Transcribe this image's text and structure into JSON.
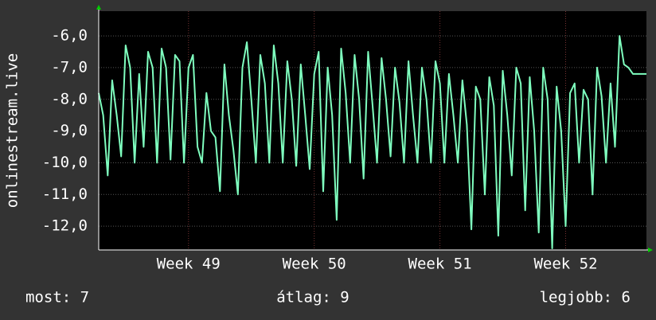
{
  "chart_data": {
    "type": "line",
    "ylabel": "onlinestream.live",
    "xlim": [
      0,
      30.5
    ],
    "ylim": [
      -12.75,
      -5.22
    ],
    "xticks": [
      {
        "value": 5,
        "label": "Week 49"
      },
      {
        "value": 12,
        "label": "Week 50"
      },
      {
        "value": 19,
        "label": "Week 51"
      },
      {
        "value": 26,
        "label": "Week 52"
      }
    ],
    "yticks": [
      {
        "value": -12,
        "label": "-12,0"
      },
      {
        "value": -11,
        "label": "-11,0"
      },
      {
        "value": -10,
        "label": "-10,0"
      },
      {
        "value": -9,
        "label": "-9,0"
      },
      {
        "value": -8,
        "label": "-8,0"
      },
      {
        "value": -7,
        "label": "-7,0"
      },
      {
        "value": -6,
        "label": "-6,0"
      }
    ],
    "grid": true,
    "x": [
      0,
      0.25,
      0.5,
      0.75,
      1,
      1.25,
      1.5,
      1.75,
      2,
      2.25,
      2.5,
      2.75,
      3,
      3.25,
      3.5,
      3.75,
      4,
      4.25,
      4.5,
      4.75,
      5,
      5.25,
      5.5,
      5.75,
      6,
      6.25,
      6.5,
      6.75,
      7,
      7.25,
      7.5,
      7.75,
      8,
      8.25,
      8.5,
      8.75,
      9,
      9.25,
      9.5,
      9.75,
      10,
      10.25,
      10.5,
      10.75,
      11,
      11.25,
      11.5,
      11.75,
      12,
      12.25,
      12.5,
      12.75,
      13,
      13.25,
      13.5,
      13.75,
      14,
      14.25,
      14.5,
      14.75,
      15,
      15.25,
      15.5,
      15.75,
      16,
      16.25,
      16.5,
      16.75,
      17,
      17.25,
      17.5,
      17.75,
      18,
      18.25,
      18.5,
      18.75,
      19,
      19.25,
      19.5,
      19.75,
      20,
      20.25,
      20.5,
      20.75,
      21,
      21.25,
      21.5,
      21.75,
      22,
      22.25,
      22.5,
      22.75,
      23,
      23.25,
      23.5,
      23.75,
      24,
      24.25,
      24.5,
      24.75,
      25,
      25.25,
      25.5,
      25.75,
      26,
      26.25,
      26.5,
      26.75,
      27,
      27.25,
      27.5,
      27.75,
      28,
      28.25,
      28.5,
      28.75,
      29,
      29.25,
      29.5,
      29.75,
      30,
      30.25,
      30.5
    ],
    "series": [
      {
        "name": "onlinestream.live",
        "color": "#7fffbf",
        "values": [
          -7.8,
          -8.5,
          -10.4,
          -7.4,
          -8.5,
          -9.8,
          -6.3,
          -7.0,
          -10.0,
          -7.2,
          -9.5,
          -6.5,
          -7.0,
          -10.0,
          -6.4,
          -7.0,
          -9.9,
          -6.6,
          -6.8,
          -10.0,
          -7.0,
          -6.6,
          -9.5,
          -10.0,
          -7.8,
          -9.0,
          -9.2,
          -10.9,
          -6.9,
          -8.5,
          -9.6,
          -11.0,
          -7.0,
          -6.2,
          -8.0,
          -10.0,
          -6.6,
          -7.5,
          -10.0,
          -6.3,
          -7.5,
          -10.0,
          -6.8,
          -8.0,
          -10.1,
          -6.9,
          -8.5,
          -10.2,
          -7.2,
          -6.5,
          -10.9,
          -7.0,
          -8.5,
          -11.8,
          -6.4,
          -7.8,
          -10.0,
          -6.6,
          -8.0,
          -10.5,
          -6.5,
          -8.2,
          -10.0,
          -6.7,
          -8.0,
          -9.8,
          -7.0,
          -8.1,
          -10.0,
          -6.8,
          -8.5,
          -10.0,
          -7.0,
          -8.0,
          -10.0,
          -6.8,
          -7.5,
          -10.0,
          -7.2,
          -8.5,
          -10.0,
          -7.4,
          -8.8,
          -12.1,
          -7.6,
          -8.0,
          -11.0,
          -7.3,
          -8.2,
          -12.3,
          -7.1,
          -8.5,
          -10.4,
          -7.0,
          -7.5,
          -11.5,
          -7.3,
          -9.0,
          -12.2,
          -7.0,
          -8.0,
          -12.7,
          -7.6,
          -9.0,
          -12.0,
          -7.8,
          -7.5,
          -10.0,
          -7.7,
          -8.0,
          -11.0,
          -7.0,
          -7.9,
          -10.0,
          -7.5,
          -9.5,
          -6.0,
          -6.9,
          -7.0,
          -7.2,
          -7.2,
          -7.2,
          -7.2
        ]
      }
    ],
    "stats": {
      "current": "most: 7",
      "average": "átlag: 9",
      "best": "legjobb: 6"
    }
  }
}
